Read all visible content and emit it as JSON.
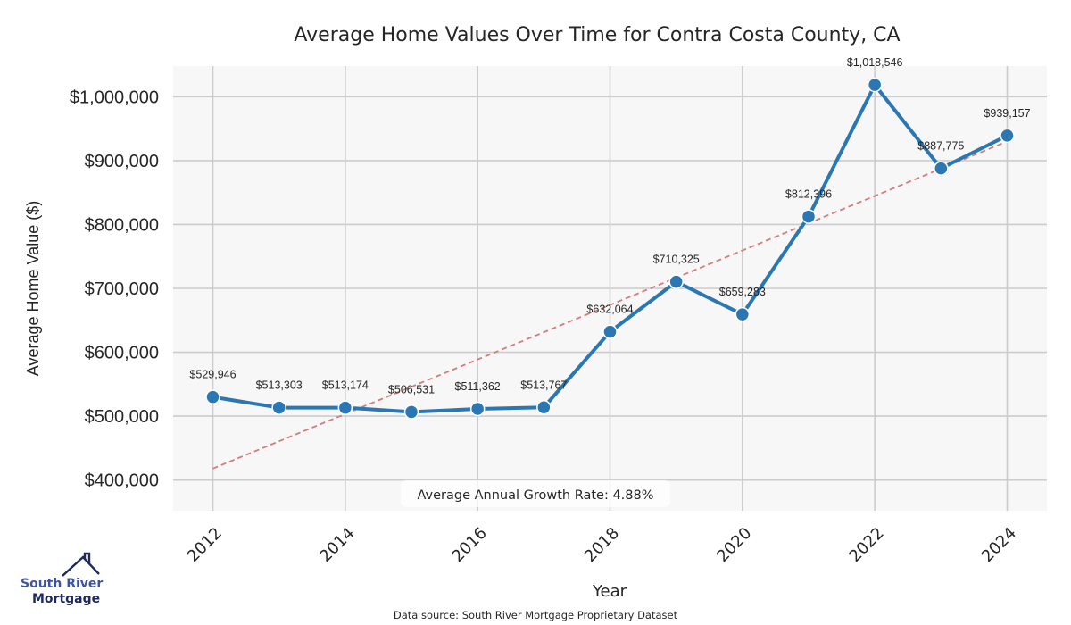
{
  "chart_data": {
    "type": "line",
    "title": "Average Home Values Over Time for Contra Costa County, CA",
    "xlabel": "Year",
    "ylabel": "Average Home Value ($)",
    "x": [
      2012,
      2013,
      2014,
      2015,
      2016,
      2017,
      2018,
      2019,
      2020,
      2021,
      2022,
      2023,
      2024
    ],
    "xlim": [
      2011.4,
      2024.6
    ],
    "ylim": [
      352000,
      1048000
    ],
    "grid": true,
    "xticks": [
      "2012",
      "2014",
      "2016",
      "2018",
      "2020",
      "2022",
      "2024"
    ],
    "yticks": [
      400000,
      500000,
      600000,
      700000,
      800000,
      900000,
      1000000
    ],
    "ytick_labels": [
      "$400,000",
      "$500,000",
      "$600,000",
      "$700,000",
      "$800,000",
      "$900,000",
      "$1,000,000"
    ],
    "series": [
      {
        "name": "Average Home Value",
        "color": "#2a77b4",
        "values": [
          529946,
          513303,
          513174,
          506531,
          511362,
          513767,
          632064,
          710325,
          659283,
          812396,
          1018546,
          887775,
          939157
        ],
        "labels": [
          "$529,946",
          "$513,303",
          "$513,174",
          "$506,531",
          "$511,362",
          "$513,767",
          "$632,064",
          "$710,325",
          "$659,283",
          "$812,396",
          "$1,018,546",
          "$887,775",
          "$939,157"
        ]
      },
      {
        "name": "Trend",
        "style": "dashed",
        "color": "#d47c7c",
        "x": [
          2012,
          2024
        ],
        "values": [
          418000,
          930000
        ]
      }
    ],
    "annotations": [
      {
        "text": "Average Annual Growth Rate: 4.88%",
        "position": "bottom-center"
      }
    ]
  },
  "footer": {
    "source": "Data source: South River Mortgage Proprietary Dataset"
  },
  "logo": {
    "line1": "South River",
    "line2": "Mortgage"
  },
  "colors": {
    "plot_bg": "#f7f7f7",
    "grid": "#cccccc",
    "line": "#2a77b4",
    "trend": "#d47c7c",
    "logo_primary": "#3b55a3",
    "logo_dark": "#1f2a5c"
  }
}
